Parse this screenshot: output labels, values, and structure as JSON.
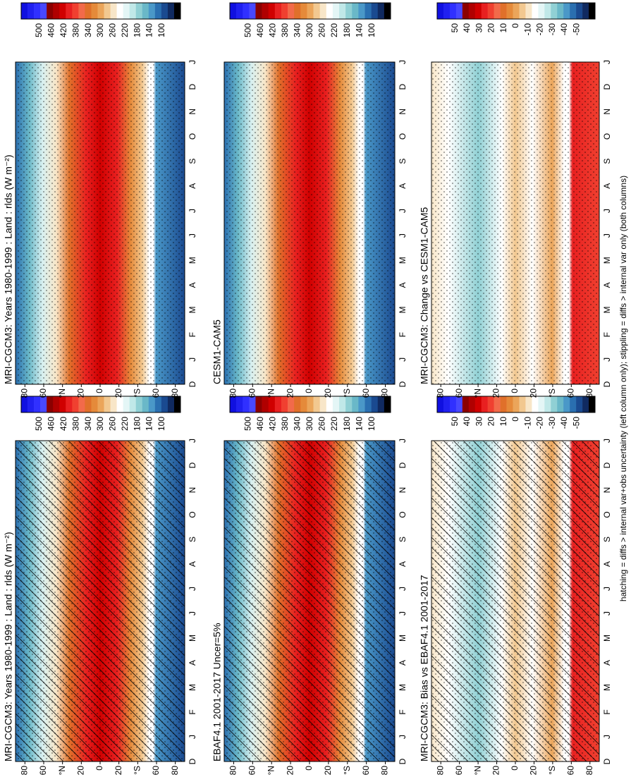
{
  "chart_data": [
    {
      "type": "contour",
      "title": "MRI-CGCM3: Years 1980-1999 : Land : rlds (W m⁻²)",
      "hatching": true,
      "stippling": true,
      "field": "absolute",
      "categories": [
        "D",
        "J",
        "F",
        "M",
        "A",
        "M",
        "J",
        "J",
        "A",
        "S",
        "O",
        "N",
        "D",
        "J"
      ],
      "ylim": [
        90,
        -90
      ],
      "yticks": [
        {
          "value": 80,
          "label": "80"
        },
        60,
        {
          "value": 40,
          "label": "°N"
        },
        20,
        0,
        {
          "value": -20,
          "label": "20"
        },
        {
          "value": -40,
          "label": "°S"
        },
        {
          "value": -60,
          "label": "60"
        },
        {
          "value": -80,
          "label": "80"
        }
      ],
      "colorbar_ticks": [
        500,
        460,
        420,
        380,
        340,
        300,
        260,
        220,
        180,
        140,
        100
      ]
    },
    {
      "type": "contour",
      "title": "MRI-CGCM3: Years 1980-1999 : Land : rlds (W m⁻²)",
      "hatching": false,
      "stippling": true,
      "field": "absolute",
      "categories": [
        "D",
        "J",
        "F",
        "M",
        "A",
        "M",
        "J",
        "J",
        "A",
        "S",
        "O",
        "N",
        "D",
        "J"
      ],
      "ylim": [
        90,
        -90
      ],
      "yticks": [
        {
          "value": 80,
          "label": "80"
        },
        60,
        {
          "value": 40,
          "label": "°N"
        },
        20,
        0,
        {
          "value": -20,
          "label": "20"
        },
        {
          "value": -40,
          "label": "°S"
        },
        {
          "value": -60,
          "label": "60"
        },
        {
          "value": -80,
          "label": "80"
        }
      ],
      "colorbar_ticks": [
        500,
        460,
        420,
        380,
        340,
        300,
        260,
        220,
        180,
        140,
        100
      ]
    },
    {
      "type": "contour",
      "title": "EBAF4.1 2001-2017 Uncer=5%",
      "hatching": true,
      "stippling": true,
      "field": "absolute",
      "categories": [
        "D",
        "J",
        "F",
        "M",
        "A",
        "M",
        "J",
        "J",
        "A",
        "S",
        "O",
        "N",
        "D",
        "J"
      ],
      "ylim": [
        90,
        -90
      ],
      "yticks": [
        {
          "value": 80,
          "label": "80"
        },
        60,
        {
          "value": 40,
          "label": "°N"
        },
        20,
        0,
        {
          "value": -20,
          "label": "20"
        },
        {
          "value": -40,
          "label": "°S"
        },
        {
          "value": -60,
          "label": "60"
        },
        {
          "value": -80,
          "label": "80"
        }
      ],
      "colorbar_ticks": [
        500,
        460,
        420,
        380,
        340,
        300,
        260,
        220,
        180,
        140,
        100
      ]
    },
    {
      "type": "contour",
      "title": "CESM1-CAM5",
      "hatching": false,
      "stippling": true,
      "field": "absolute",
      "categories": [
        "D",
        "J",
        "F",
        "M",
        "A",
        "M",
        "J",
        "J",
        "A",
        "S",
        "O",
        "N",
        "D",
        "J"
      ],
      "ylim": [
        90,
        -90
      ],
      "yticks": [
        {
          "value": 80,
          "label": "80"
        },
        60,
        {
          "value": 40,
          "label": "°N"
        },
        20,
        0,
        {
          "value": -20,
          "label": "20"
        },
        {
          "value": -40,
          "label": "°S"
        },
        {
          "value": -60,
          "label": "60"
        },
        {
          "value": -80,
          "label": "80"
        }
      ],
      "colorbar_ticks": [
        500,
        460,
        420,
        380,
        340,
        300,
        260,
        220,
        180,
        140,
        100
      ]
    },
    {
      "type": "contour",
      "title": "MRI-CGCM3: Bias vs EBAF4.1 2001-2017",
      "hatching": true,
      "stippling": true,
      "field": "difference",
      "categories": [
        "D",
        "J",
        "F",
        "M",
        "A",
        "M",
        "J",
        "J",
        "A",
        "S",
        "O",
        "N",
        "D",
        "J"
      ],
      "ylim": [
        90,
        -90
      ],
      "yticks": [
        {
          "value": 80,
          "label": "80"
        },
        60,
        {
          "value": 40,
          "label": "°N"
        },
        20,
        0,
        {
          "value": -20,
          "label": "20"
        },
        {
          "value": -40,
          "label": "°S"
        },
        {
          "value": -60,
          "label": "60"
        },
        {
          "value": -80,
          "label": "80"
        }
      ],
      "colorbar_ticks": [
        50,
        40,
        30,
        20,
        10,
        0,
        -10,
        -20,
        -30,
        -40,
        -50
      ]
    },
    {
      "type": "contour",
      "title": "MRI-CGCM3: Change vs CESM1-CAM5",
      "hatching": false,
      "stippling": true,
      "field": "difference",
      "categories": [
        "D",
        "J",
        "F",
        "M",
        "A",
        "M",
        "J",
        "J",
        "A",
        "S",
        "O",
        "N",
        "D",
        "J"
      ],
      "ylim": [
        90,
        -90
      ],
      "yticks": [
        {
          "value": 80,
          "label": "80"
        },
        60,
        {
          "value": 40,
          "label": "°N"
        },
        20,
        0,
        {
          "value": -20,
          "label": "20"
        },
        {
          "value": -40,
          "label": "°S"
        },
        {
          "value": -60,
          "label": "60"
        },
        {
          "value": -80,
          "label": "80"
        }
      ],
      "colorbar_ticks": [
        50,
        40,
        30,
        20,
        10,
        0,
        -10,
        -20,
        -30,
        -40,
        -50
      ]
    }
  ],
  "footnote": "hatching = diffs > internal var+obs uncertainty (left column only); stippling = diffs > internal var only (both columns)"
}
